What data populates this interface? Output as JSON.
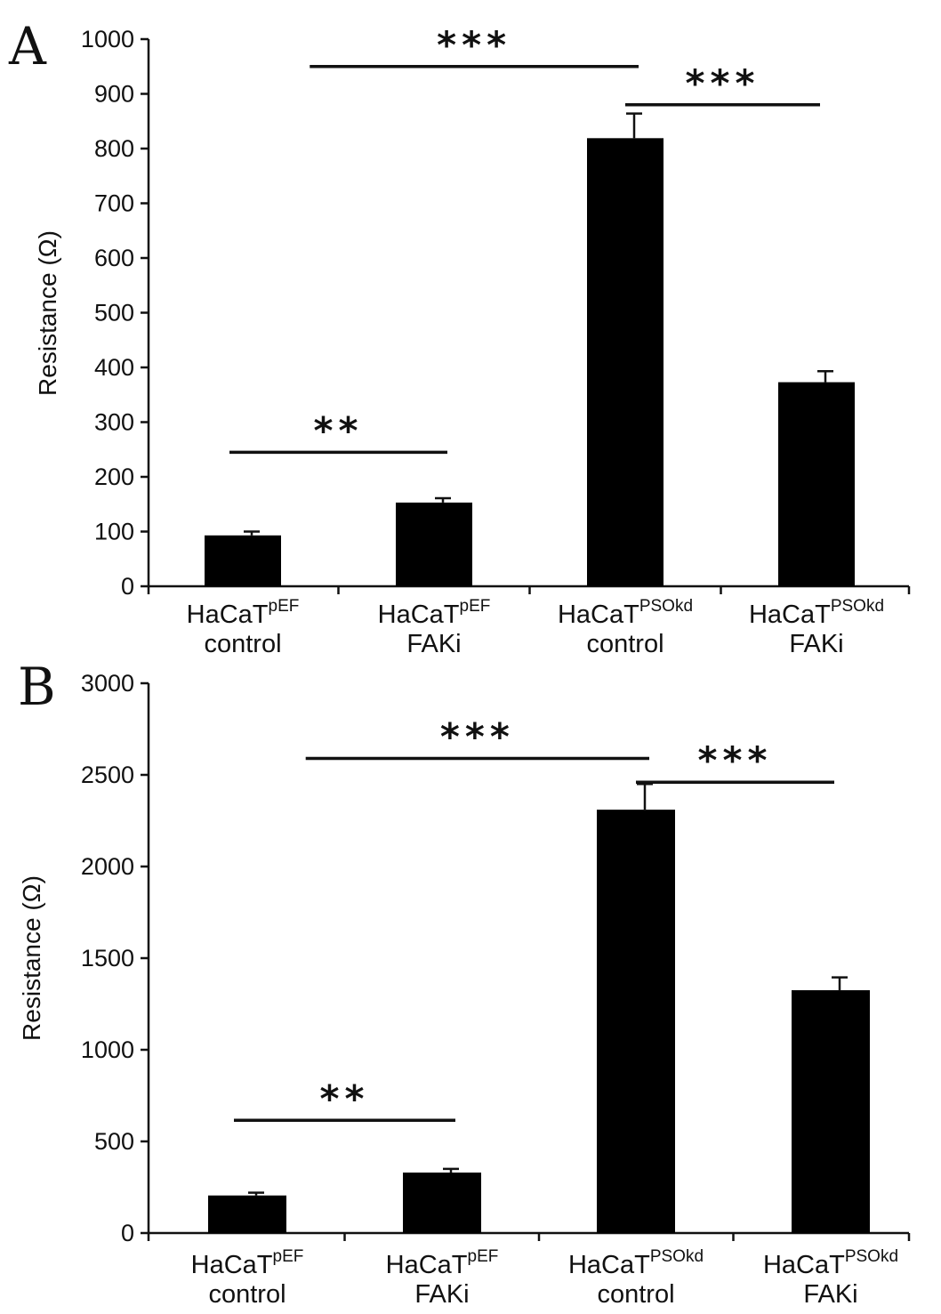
{
  "chart_data": [
    {
      "panel": "A",
      "type": "bar",
      "categories": [
        {
          "base": "HaCaT",
          "sup": "pEF",
          "sub": "control"
        },
        {
          "base": "HaCaT",
          "sup": "pEF",
          "sub": "FAKi"
        },
        {
          "base": "HaCaT",
          "sup": "PSOkd",
          "sub": "control"
        },
        {
          "base": "HaCaT",
          "sup": "PSOkd",
          "sub": "FAKi"
        }
      ],
      "values": [
        93,
        153,
        819,
        373
      ],
      "errors": [
        7,
        8,
        45,
        20
      ],
      "ylabel": "Resistance (Ω)",
      "ylim": [
        0,
        1000
      ],
      "yticks": [
        "0",
        "100",
        "200",
        "300",
        "400",
        "500",
        "600",
        "700",
        "800",
        "900",
        "1000"
      ],
      "significance": [
        {
          "from": 0,
          "to": 1,
          "y": 245,
          "label": "**"
        },
        {
          "from": 0.35,
          "to": 2,
          "y": 950,
          "label": "***"
        },
        {
          "from": 2,
          "to": 3,
          "y": 880,
          "label": "***"
        }
      ],
      "bar_color": "#000000",
      "grid": false
    },
    {
      "panel": "B",
      "type": "bar",
      "categories": [
        {
          "base": "HaCaT",
          "sup": "pEF",
          "sub": "control"
        },
        {
          "base": "HaCaT",
          "sup": "pEF",
          "sub": "FAKi"
        },
        {
          "base": "HaCaT",
          "sup": "PSOkd",
          "sub": "control"
        },
        {
          "base": "HaCaT",
          "sup": "PSOkd",
          "sub": "FAKi"
        }
      ],
      "values": [
        205,
        330,
        2310,
        1325
      ],
      "errors": [
        15,
        20,
        140,
        70
      ],
      "ylabel": "Resistance (Ω)",
      "ylim": [
        0,
        3000
      ],
      "yticks": [
        "0",
        "500",
        "1000",
        "1500",
        "2000",
        "2500",
        "3000"
      ],
      "significance": [
        {
          "from": 0,
          "to": 1,
          "y": 615,
          "label": "**"
        },
        {
          "from": 0.3,
          "to": 2,
          "y": 2590,
          "label": "***"
        },
        {
          "from": 2,
          "to": 3,
          "y": 2460,
          "label": "***"
        }
      ],
      "bar_color": "#000000",
      "grid": false
    }
  ]
}
